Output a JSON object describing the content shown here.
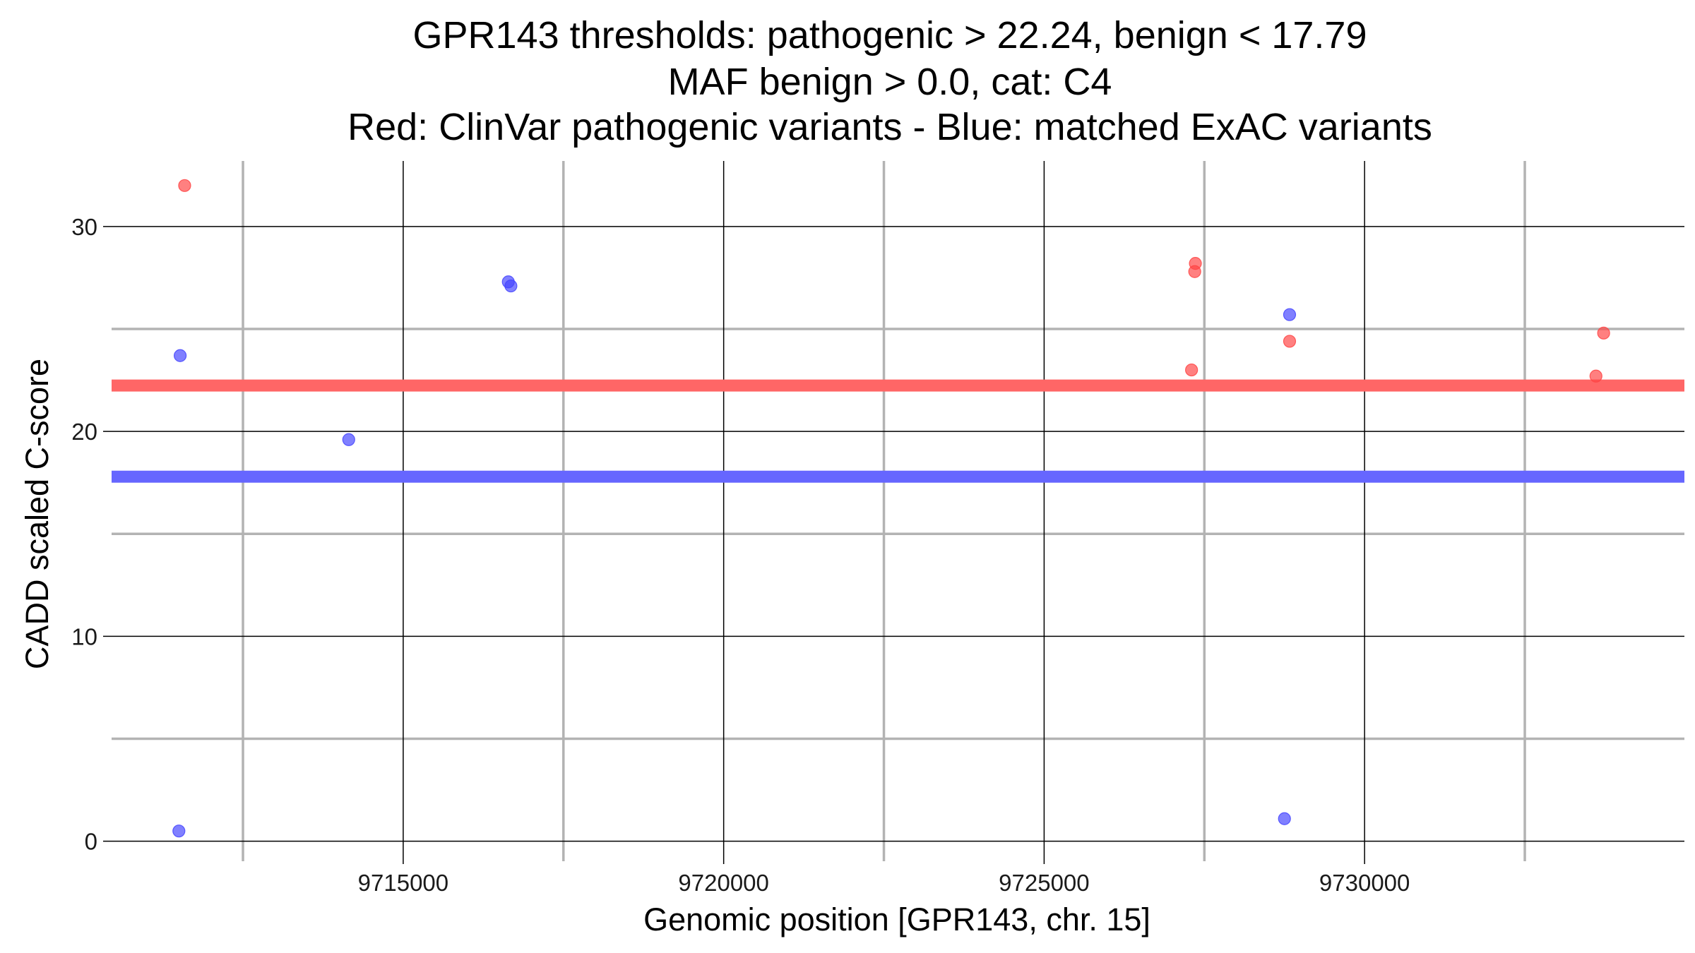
{
  "chart_data": {
    "type": "scatter",
    "title_lines": [
      "GPR143 thresholds: pathogenic > 22.24, benign < 17.79",
      "MAF benign > 0.0, cat: C4",
      "Red: ClinVar pathogenic variants - Blue: matched ExAC variants"
    ],
    "xlabel": "Genomic position [GPR143, chr. 15]",
    "ylabel": "CADD scaled C-score",
    "xlim": [
      9710450,
      9734990
    ],
    "ylim": [
      -0.7,
      33.2
    ],
    "x_major_ticks": [
      9715000,
      9720000,
      9725000,
      9730000
    ],
    "x_minor_ticks": [
      9712500,
      9717500,
      9722500,
      9727500,
      9732500
    ],
    "y_major_ticks": [
      0,
      10,
      20,
      30
    ],
    "y_minor_ticks": [
      5,
      15,
      25
    ],
    "x_tick_labels": [
      "9715000",
      "9720000",
      "9725000",
      "9730000"
    ],
    "y_tick_labels": [
      "0",
      "10",
      "20",
      "30"
    ],
    "thresholds": [
      {
        "name": "pathogenic",
        "value": 22.24,
        "color": "#ff6666"
      },
      {
        "name": "benign",
        "value": 17.79,
        "color": "#6666ff"
      }
    ],
    "series": [
      {
        "name": "ClinVar pathogenic",
        "color": "#ff4444",
        "points": [
          {
            "x": 9711590,
            "y": 32.0
          },
          {
            "x": 9727360,
            "y": 28.2
          },
          {
            "x": 9727350,
            "y": 27.8
          },
          {
            "x": 9727300,
            "y": 23.0
          },
          {
            "x": 9728830,
            "y": 24.4
          },
          {
            "x": 9733610,
            "y": 22.7
          },
          {
            "x": 9733730,
            "y": 24.8
          }
        ]
      },
      {
        "name": "matched ExAC",
        "color": "#4444ff",
        "points": [
          {
            "x": 9711520,
            "y": 23.7
          },
          {
            "x": 9711500,
            "y": 0.5
          },
          {
            "x": 9714150,
            "y": 19.6
          },
          {
            "x": 9716640,
            "y": 27.3
          },
          {
            "x": 9716680,
            "y": 27.1
          },
          {
            "x": 9728830,
            "y": 25.7
          },
          {
            "x": 9728750,
            "y": 1.1
          }
        ]
      }
    ]
  }
}
